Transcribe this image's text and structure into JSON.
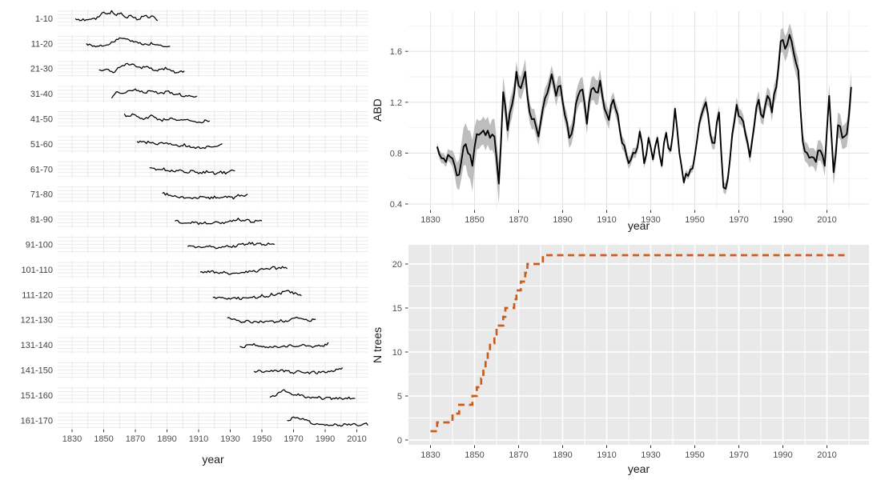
{
  "colors": {
    "background": "#ffffff",
    "panel_gray": "#e9e9e9",
    "grid_on_white_major": "#e3e3e3",
    "grid_on_white_minor": "#f2f2f2",
    "grid_on_gray": "#ffffff",
    "axis_text": "#4d4d4d",
    "axis_title": "#1a1a1a",
    "facet_label": "#404040",
    "tick_mark": "#333333",
    "series_black": "#000000",
    "ribbon_gray": "#bdbdbd",
    "n_trees_orange": "#ca5d1d"
  },
  "chart_data": [
    {
      "id": "ring-width-facets",
      "type": "line",
      "title": "",
      "xlabel": "year",
      "ylabel": "",
      "x_ticks": [
        1830,
        1850,
        1870,
        1890,
        1910,
        1930,
        1950,
        1970,
        1990,
        2010
      ],
      "x_range": [
        1821,
        2018
      ],
      "grid": "on",
      "legend": "none",
      "facets": [
        {
          "label": "1-10",
          "start": 1832,
          "end": 1884,
          "values": [
            0.5,
            0.44,
            0.42,
            0.47,
            0.43,
            0.58,
            0.85,
            0.75,
            0.88,
            0.72,
            0.8,
            0.55,
            0.62,
            0.5,
            0.45,
            0.7,
            0.52,
            0.6,
            0.38
          ]
        },
        {
          "label": "11-20",
          "start": 1839,
          "end": 1892,
          "values": [
            0.45,
            0.38,
            0.3,
            0.42,
            0.36,
            0.5,
            0.62,
            0.75,
            0.82,
            0.7,
            0.65,
            0.55,
            0.48,
            0.42,
            0.5,
            0.4,
            0.35,
            0.38,
            0.33
          ]
        },
        {
          "label": "21-30",
          "start": 1847,
          "end": 1901,
          "values": [
            0.4,
            0.44,
            0.38,
            0.25,
            0.5,
            0.65,
            0.8,
            0.72,
            0.6,
            0.55,
            0.62,
            0.48,
            0.4,
            0.45,
            0.52,
            0.42,
            0.3,
            0.35,
            0.32
          ]
        },
        {
          "label": "31-40",
          "start": 1855,
          "end": 1909,
          "values": [
            0.3,
            0.55,
            0.48,
            0.62,
            0.7,
            0.78,
            0.62,
            0.55,
            0.65,
            0.58,
            0.5,
            0.55,
            0.6,
            0.45,
            0.5,
            0.38,
            0.42,
            0.35,
            0.3
          ]
        },
        {
          "label": "41-50",
          "start": 1863,
          "end": 1917,
          "values": [
            0.72,
            0.6,
            0.78,
            0.55,
            0.48,
            0.58,
            0.68,
            0.5,
            0.42,
            0.48,
            0.52,
            0.45,
            0.4,
            0.48,
            0.42,
            0.3,
            0.28,
            0.38,
            0.35
          ]
        },
        {
          "label": "51-60",
          "start": 1871,
          "end": 1925,
          "values": [
            0.6,
            0.64,
            0.58,
            0.62,
            0.5,
            0.55,
            0.48,
            0.52,
            0.42,
            0.38,
            0.45,
            0.35,
            0.3,
            0.32,
            0.28,
            0.35,
            0.3,
            0.42,
            0.45
          ]
        },
        {
          "label": "61-70",
          "start": 1879,
          "end": 1933,
          "values": [
            0.58,
            0.52,
            0.48,
            0.5,
            0.42,
            0.38,
            0.45,
            0.35,
            0.32,
            0.38,
            0.3,
            0.28,
            0.35,
            0.3,
            0.25,
            0.32,
            0.28,
            0.4,
            0.38
          ]
        },
        {
          "label": "71-80",
          "start": 1887,
          "end": 1941,
          "values": [
            0.55,
            0.48,
            0.42,
            0.36,
            0.3,
            0.34,
            0.28,
            0.25,
            0.32,
            0.3,
            0.26,
            0.34,
            0.3,
            0.38,
            0.32,
            0.28,
            0.42,
            0.36,
            0.44
          ]
        },
        {
          "label": "81-90",
          "start": 1895,
          "end": 1950,
          "values": [
            0.42,
            0.36,
            0.3,
            0.28,
            0.34,
            0.26,
            0.3,
            0.25,
            0.28,
            0.32,
            0.26,
            0.3,
            0.45,
            0.52,
            0.38,
            0.48,
            0.35,
            0.42,
            0.38
          ]
        },
        {
          "label": "91-100",
          "start": 1903,
          "end": 1958,
          "values": [
            0.4,
            0.35,
            0.38,
            0.32,
            0.36,
            0.4,
            0.3,
            0.35,
            0.42,
            0.38,
            0.35,
            0.55,
            0.45,
            0.58,
            0.5,
            0.55,
            0.48,
            0.58,
            0.52
          ]
        },
        {
          "label": "101-110",
          "start": 1911,
          "end": 1966,
          "values": [
            0.32,
            0.36,
            0.4,
            0.35,
            0.3,
            0.34,
            0.28,
            0.35,
            0.32,
            0.38,
            0.35,
            0.42,
            0.38,
            0.55,
            0.48,
            0.62,
            0.55,
            0.65,
            0.58
          ]
        },
        {
          "label": "111-120",
          "start": 1919,
          "end": 1975,
          "values": [
            0.35,
            0.3,
            0.34,
            0.28,
            0.32,
            0.3,
            0.26,
            0.32,
            0.38,
            0.35,
            0.45,
            0.4,
            0.52,
            0.48,
            0.6,
            0.7,
            0.62,
            0.55,
            0.5
          ]
        },
        {
          "label": "121-130",
          "start": 1928,
          "end": 1984,
          "values": [
            0.6,
            0.52,
            0.45,
            0.38,
            0.42,
            0.35,
            0.38,
            0.42,
            0.36,
            0.4,
            0.38,
            0.44,
            0.4,
            0.58,
            0.65,
            0.52,
            0.48,
            0.42,
            0.6
          ]
        },
        {
          "label": "131-140",
          "start": 1936,
          "end": 1992,
          "values": [
            0.38,
            0.42,
            0.48,
            0.52,
            0.44,
            0.38,
            0.34,
            0.4,
            0.36,
            0.42,
            0.46,
            0.4,
            0.44,
            0.48,
            0.42,
            0.38,
            0.52,
            0.46,
            0.58
          ]
        },
        {
          "label": "141-150",
          "start": 1945,
          "end": 2001,
          "values": [
            0.4,
            0.44,
            0.4,
            0.46,
            0.42,
            0.48,
            0.44,
            0.4,
            0.36,
            0.42,
            0.38,
            0.34,
            0.38,
            0.35,
            0.4,
            0.36,
            0.44,
            0.52,
            0.58
          ]
        },
        {
          "label": "151-160",
          "start": 1955,
          "end": 2009,
          "values": [
            0.42,
            0.5,
            0.62,
            0.75,
            0.6,
            0.52,
            0.55,
            0.45,
            0.38,
            0.35,
            0.38,
            0.32,
            0.35,
            0.3,
            0.34,
            0.3,
            0.36,
            0.32,
            0.35
          ]
        },
        {
          "label": "161-170",
          "start": 1966,
          "end": 2017,
          "values": [
            0.45,
            0.6,
            0.68,
            0.52,
            0.58,
            0.4,
            0.32,
            0.28,
            0.25,
            0.22,
            0.2,
            0.24,
            0.2,
            0.26,
            0.22,
            0.28,
            0.24,
            0.3,
            0.26
          ]
        }
      ]
    },
    {
      "id": "abd",
      "type": "line",
      "title": "",
      "xlabel": "year",
      "ylabel": "ABD",
      "x_ticks": [
        1830,
        1850,
        1870,
        1890,
        1910,
        1930,
        1950,
        1970,
        1990,
        2010
      ],
      "y_ticks": [
        0.4,
        0.8,
        1.2,
        1.6
      ],
      "y_minor_ticks": [
        0.6,
        1.0,
        1.4,
        1.8
      ],
      "x_range": [
        1820,
        2029
      ],
      "y_range": [
        0.36,
        1.92
      ],
      "grid": "on",
      "legend": "none",
      "series_start_year": 1833,
      "series_step_years": 2,
      "values": [
        0.85,
        0.76,
        0.73,
        0.77,
        0.7,
        0.63,
        0.85,
        0.8,
        0.7,
        0.95,
        0.96,
        0.94,
        0.92,
        0.93,
        0.56,
        1.28,
        0.98,
        1.18,
        1.44,
        1.31,
        1.44,
        1.12,
        1.07,
        0.93,
        1.15,
        1.27,
        1.42,
        1.25,
        1.33,
        1.1,
        0.92,
        1.03,
        1.25,
        1.3,
        1.03,
        1.3,
        1.28,
        1.37,
        1.15,
        1.06,
        1.22,
        1.1,
        0.88,
        0.78,
        0.75,
        0.8,
        0.97,
        0.72,
        0.92,
        0.75,
        0.92,
        0.7,
        0.96,
        0.82,
        1.15,
        0.8,
        0.57,
        0.62,
        0.68,
        0.9,
        1.1,
        1.2,
        0.95,
        0.88,
        1.12,
        0.53,
        0.6,
        0.95,
        1.18,
        1.08,
        0.95,
        0.77,
        1.02,
        1.22,
        1.08,
        1.25,
        1.12,
        1.32,
        1.68,
        1.62,
        1.73,
        1.58,
        1.45,
        0.89,
        0.8,
        0.77,
        0.73,
        0.82,
        0.7,
        1.25,
        0.65,
        1.02,
        0.92,
        0.95,
        1.32
      ],
      "ribbon_halfwidth": [
        0.03,
        0.04,
        0.04,
        0.05,
        0.08,
        0.12,
        0.15,
        0.18,
        0.2,
        0.12,
        0.1,
        0.12,
        0.1,
        0.14,
        0.16,
        0.12,
        0.1,
        0.1,
        0.08,
        0.09,
        0.1,
        0.08,
        0.08,
        0.07,
        0.08,
        0.08,
        0.07,
        0.08,
        0.08,
        0.07,
        0.08,
        0.08,
        0.09,
        0.1,
        0.08,
        0.09,
        0.1,
        0.09,
        0.07,
        0.07,
        0.06,
        0.06,
        0.05,
        0.05,
        0.04,
        0.04,
        0.04,
        0.04,
        0.03,
        0.03,
        0.03,
        0.03,
        0.03,
        0.03,
        0.03,
        0.03,
        0.03,
        0.03,
        0.03,
        0.04,
        0.05,
        0.05,
        0.05,
        0.05,
        0.05,
        0.04,
        0.05,
        0.06,
        0.06,
        0.06,
        0.05,
        0.05,
        0.06,
        0.07,
        0.06,
        0.07,
        0.07,
        0.08,
        0.09,
        0.1,
        0.09,
        0.1,
        0.09,
        0.07,
        0.08,
        0.07,
        0.08,
        0.08,
        0.08,
        0.09,
        0.1,
        0.1,
        0.09,
        0.1,
        0.12
      ]
    },
    {
      "id": "n-trees",
      "type": "step",
      "title": "",
      "xlabel": "year",
      "ylabel": "N trees",
      "x_ticks": [
        1830,
        1850,
        1870,
        1890,
        1910,
        1930,
        1950,
        1970,
        1990,
        2010
      ],
      "y_ticks": [
        0,
        5,
        10,
        15,
        20
      ],
      "y_minor_ticks": [
        2.5,
        7.5,
        12.5,
        17.5
      ],
      "x_range": [
        1820,
        2029
      ],
      "y_range": [
        0,
        22.2
      ],
      "grid": "on",
      "legend": "none",
      "line_style": "dashed",
      "steps": [
        [
          1830,
          1
        ],
        [
          1833,
          2
        ],
        [
          1840,
          3
        ],
        [
          1843,
          4
        ],
        [
          1849,
          5
        ],
        [
          1851,
          6
        ],
        [
          1853,
          7
        ],
        [
          1854,
          8
        ],
        [
          1855,
          9
        ],
        [
          1856,
          10
        ],
        [
          1857,
          11
        ],
        [
          1859,
          12
        ],
        [
          1860,
          13
        ],
        [
          1863,
          14
        ],
        [
          1864,
          15
        ],
        [
          1868,
          16
        ],
        [
          1869,
          17
        ],
        [
          1871,
          18
        ],
        [
          1873,
          19
        ],
        [
          1874,
          20
        ],
        [
          1881,
          21
        ],
        [
          2018,
          21
        ]
      ]
    }
  ]
}
